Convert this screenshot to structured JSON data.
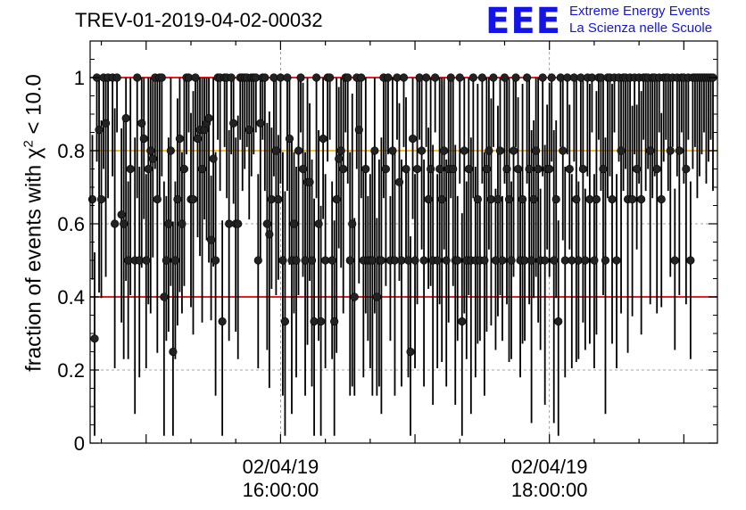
{
  "header": {
    "run_title": "TREV-01-2019-04-02-00032",
    "logo_text": "EEE",
    "logo_line1": "Extreme Energy Events",
    "logo_line2": "La Scienza nelle Scuole"
  },
  "colors": {
    "accent_blue": "#1414e6",
    "threshold_red": "#e00000",
    "threshold_orange": "#ffb000",
    "marker": "#222222"
  },
  "chart_data": {
    "type": "scatter",
    "title": "TREV-01-2019-04-02-00032",
    "xlabel": "",
    "ylabel_prefix": "fraction of events with ",
    "ylabel_symbol": "χ",
    "ylabel_exponent": "2",
    "ylabel_suffix": " < 10.0",
    "xlim": [
      "02/04/19 14:35:00",
      "02/04/19 19:15:00"
    ],
    "ylim": [
      0,
      1.1
    ],
    "grid": true,
    "x_ticks": [
      {
        "x": "02/04/19 16:00:00",
        "date": "02/04/19",
        "time": "16:00:00"
      },
      {
        "x": "02/04/19 18:00:00",
        "date": "02/04/19",
        "time": "18:00:00"
      }
    ],
    "y_ticks": [
      {
        "value": 0,
        "label": "0"
      },
      {
        "value": 0.2,
        "label": "0.2"
      },
      {
        "value": 0.4,
        "label": "0.4"
      },
      {
        "value": 0.6,
        "label": "0.6"
      },
      {
        "value": 0.8,
        "label": "0.8"
      },
      {
        "value": 1,
        "label": "1"
      }
    ],
    "hlines": [
      {
        "y": 1.0,
        "color": "#e00000"
      },
      {
        "y": 0.8,
        "color": "#ffb000"
      },
      {
        "y": 0.4,
        "color": "#e00000"
      }
    ],
    "series": [
      {
        "points": [
          [
            "14:36:00",
            0.667
          ],
          [
            "14:37:00",
            0.286
          ],
          [
            "14:38:00",
            1.0
          ],
          [
            "14:39:00",
            0.857
          ],
          [
            "14:40:00",
            0.667
          ],
          [
            "14:41:00",
            1.0
          ],
          [
            "14:42:00",
            0.875
          ],
          [
            "14:43:00",
            1.0
          ],
          [
            "14:45:00",
            1.0
          ],
          [
            "14:46:00",
            0.6
          ],
          [
            "14:47:00",
            1.0
          ],
          [
            "14:49:00",
            0.625
          ],
          [
            "14:50:00",
            0.6
          ],
          [
            "14:51:00",
            0.889
          ],
          [
            "14:52:00",
            0.5
          ],
          [
            "14:53:00",
            0.75
          ],
          [
            "14:55:00",
            0.5
          ],
          [
            "14:56:00",
            1.0
          ],
          [
            "14:57:00",
            0.5
          ],
          [
            "14:58:00",
            0.875
          ],
          [
            "14:59:00",
            0.833
          ],
          [
            "15:00:00",
            0.5
          ],
          [
            "15:01:00",
            0.75
          ],
          [
            "15:02:00",
            0.8
          ],
          [
            "15:03:00",
            0.778
          ],
          [
            "15:04:00",
            1.0
          ],
          [
            "15:05:00",
            0.667
          ],
          [
            "15:06:00",
            1.0
          ],
          [
            "15:07:00",
            1.0
          ],
          [
            "15:08:00",
            0.4
          ],
          [
            "15:09:00",
            0.5
          ],
          [
            "15:10:00",
            0.6
          ],
          [
            "15:11:00",
            0.8
          ],
          [
            "15:12:00",
            0.25
          ],
          [
            "15:13:00",
            0.5
          ],
          [
            "15:14:00",
            0.667
          ],
          [
            "15:15:00",
            0.833
          ],
          [
            "15:16:00",
            0.6
          ],
          [
            "15:17:00",
            0.75
          ],
          [
            "15:18:00",
            1.0
          ],
          [
            "15:19:00",
            1.0
          ],
          [
            "15:20:00",
            0.667
          ],
          [
            "15:21:00",
            0.667
          ],
          [
            "15:22:00",
            1.0
          ],
          [
            "15:23:00",
            0.833
          ],
          [
            "15:24:00",
            0.857
          ],
          [
            "15:25:00",
            0.75
          ],
          [
            "15:26:00",
            0.857
          ],
          [
            "15:27:00",
            0.875
          ],
          [
            "15:28:00",
            0.889
          ],
          [
            "15:29:00",
            0.556
          ],
          [
            "15:30:00",
            0.778
          ],
          [
            "15:31:00",
            0.5
          ],
          [
            "15:32:00",
            1.0
          ],
          [
            "15:33:00",
            1.0
          ],
          [
            "15:34:00",
            0.333
          ],
          [
            "15:35:00",
            1.0
          ],
          [
            "15:36:00",
            1.0
          ],
          [
            "15:37:00",
            0.6
          ],
          [
            "15:38:00",
            1.0
          ],
          [
            "15:39:00",
            0.875
          ],
          [
            "15:40:00",
            0.6
          ],
          [
            "15:41:00",
            0.6
          ],
          [
            "15:42:00",
            1.0
          ],
          [
            "15:43:00",
            1.0
          ],
          [
            "15:44:00",
            1.0
          ],
          [
            "15:45:00",
            1.0
          ],
          [
            "15:46:00",
            0.857
          ],
          [
            "15:47:00",
            1.0
          ],
          [
            "15:48:00",
            1.0
          ],
          [
            "15:49:00",
            1.0
          ],
          [
            "15:50:00",
            0.5
          ],
          [
            "15:51:00",
            0.875
          ],
          [
            "15:52:00",
            1.0
          ],
          [
            "15:53:00",
            1.0
          ],
          [
            "15:54:00",
            0.6
          ],
          [
            "15:55:00",
            0.571
          ],
          [
            "15:56:00",
            0.667
          ],
          [
            "15:57:00",
            1.0
          ],
          [
            "15:58:00",
            0.8
          ],
          [
            "15:59:00",
            0.667
          ],
          [
            "16:00:00",
            1.0
          ],
          [
            "16:01:00",
            0.5
          ],
          [
            "16:02:00",
            0.333
          ],
          [
            "16:03:00",
            1.0
          ],
          [
            "16:04:00",
            0.833
          ],
          [
            "16:05:00",
            0.5
          ],
          [
            "16:06:00",
            0.6
          ],
          [
            "16:07:00",
            0.5
          ],
          [
            "16:08:00",
            0.8
          ],
          [
            "16:09:00",
            1.0
          ],
          [
            "16:10:00",
            0.75
          ],
          [
            "16:11:00",
            0.5
          ],
          [
            "16:12:00",
            0.714
          ],
          [
            "16:13:00",
            0.714
          ],
          [
            "16:14:00",
            0.5
          ],
          [
            "16:15:00",
            0.333
          ],
          [
            "16:16:00",
            1.0
          ],
          [
            "16:17:00",
            0.6
          ],
          [
            "16:18:00",
            0.333
          ],
          [
            "16:19:00",
            0.833
          ],
          [
            "16:20:00",
            0.5
          ],
          [
            "16:21:00",
            1.0
          ],
          [
            "16:22:00",
            1.0
          ],
          [
            "16:23:00",
            0.5
          ],
          [
            "16:24:00",
            0.333
          ],
          [
            "16:25:00",
            0.667
          ],
          [
            "16:26:00",
            0.778
          ],
          [
            "16:27:00",
            0.8
          ],
          [
            "16:28:00",
            0.75
          ],
          [
            "16:29:00",
            1.0
          ],
          [
            "16:30:00",
            1.0
          ],
          [
            "16:31:00",
            0.5
          ],
          [
            "16:32:00",
            0.6
          ],
          [
            "16:33:00",
            0.4
          ],
          [
            "16:34:00",
            1.0
          ],
          [
            "16:35:00",
            0.857
          ],
          [
            "16:36:00",
            1.0
          ],
          [
            "16:37:00",
            0.5
          ],
          [
            "16:38:00",
            0.75
          ],
          [
            "16:39:00",
            0.5
          ],
          [
            "16:40:00",
            0.5
          ],
          [
            "16:41:00",
            0.5
          ],
          [
            "16:42:00",
            0.8
          ],
          [
            "16:43:00",
            0.4
          ],
          [
            "16:44:00",
            0.5
          ],
          [
            "16:45:00",
            0.5
          ],
          [
            "16:46:00",
            1.0
          ],
          [
            "16:47:00",
            0.75
          ],
          [
            "16:48:00",
            1.0
          ],
          [
            "16:49:00",
            0.5
          ],
          [
            "16:50:00",
            0.8
          ],
          [
            "16:51:00",
            0.5
          ],
          [
            "16:52:00",
            1.0
          ],
          [
            "16:53:00",
            0.714
          ],
          [
            "16:54:00",
            0.5
          ],
          [
            "16:55:00",
            1.0
          ],
          [
            "16:56:00",
            0.75
          ],
          [
            "16:57:00",
            0.5
          ],
          [
            "16:58:00",
            0.25
          ],
          [
            "16:59:00",
            0.833
          ],
          [
            "17:00:00",
            0.5
          ],
          [
            "17:01:00",
            0.75
          ],
          [
            "17:02:00",
            1.0
          ],
          [
            "17:03:00",
            0.8
          ],
          [
            "17:04:00",
            0.5
          ],
          [
            "17:05:00",
            1.0
          ],
          [
            "17:06:00",
            0.667
          ],
          [
            "17:07:00",
            0.75
          ],
          [
            "17:08:00",
            0.5
          ],
          [
            "17:09:00",
            1.0
          ],
          [
            "17:10:00",
            0.5
          ],
          [
            "17:11:00",
            0.75
          ],
          [
            "17:12:00",
            0.667
          ],
          [
            "17:13:00",
            0.8
          ],
          [
            "17:14:00",
            0.5
          ],
          [
            "17:15:00",
            0.75
          ],
          [
            "17:16:00",
            1.0
          ],
          [
            "17:17:00",
            0.75
          ],
          [
            "17:18:00",
            0.5
          ],
          [
            "17:19:00",
            0.5
          ],
          [
            "17:20:00",
            1.0
          ],
          [
            "17:21:00",
            0.333
          ],
          [
            "17:22:00",
            0.8
          ],
          [
            "17:23:00",
            0.5
          ],
          [
            "17:24:00",
            0.75
          ],
          [
            "17:25:00",
            0.5
          ],
          [
            "17:26:00",
            1.0
          ],
          [
            "17:27:00",
            0.5
          ],
          [
            "17:28:00",
            0.667
          ],
          [
            "17:29:00",
            0.5
          ],
          [
            "17:30:00",
            1.0
          ],
          [
            "17:31:00",
            0.5
          ],
          [
            "17:32:00",
            0.75
          ],
          [
            "17:33:00",
            0.8
          ],
          [
            "17:34:00",
            0.667
          ],
          [
            "17:35:00",
            1.0
          ],
          [
            "17:36:00",
            0.5
          ],
          [
            "17:37:00",
            0.667
          ],
          [
            "17:38:00",
            0.8
          ],
          [
            "17:39:00",
            0.5
          ],
          [
            "17:40:00",
            1.0
          ],
          [
            "17:41:00",
            0.75
          ],
          [
            "17:42:00",
            0.667
          ],
          [
            "17:43:00",
            0.5
          ],
          [
            "17:44:00",
            0.8
          ],
          [
            "17:45:00",
            1.0
          ],
          [
            "17:46:00",
            0.75
          ],
          [
            "17:47:00",
            0.5
          ],
          [
            "17:48:00",
            0.667
          ],
          [
            "17:49:00",
            0.5
          ],
          [
            "17:50:00",
            1.0
          ],
          [
            "17:51:00",
            0.75
          ],
          [
            "17:52:00",
            0.5
          ],
          [
            "17:53:00",
            0.667
          ],
          [
            "17:54:00",
            0.8
          ],
          [
            "17:55:00",
            0.75
          ],
          [
            "17:56:00",
            0.5
          ],
          [
            "17:57:00",
            1.0
          ],
          [
            "17:58:00",
            0.5
          ],
          [
            "17:59:00",
            0.75
          ],
          [
            "18:00:00",
            0.75
          ],
          [
            "18:01:00",
            1.0
          ],
          [
            "18:02:00",
            0.5
          ],
          [
            "18:03:00",
            0.667
          ],
          [
            "18:04:00",
            0.333
          ],
          [
            "18:05:00",
            1.0
          ],
          [
            "18:06:00",
            0.8
          ],
          [
            "18:07:00",
            0.5
          ],
          [
            "18:08:00",
            1.0
          ],
          [
            "18:09:00",
            0.75
          ],
          [
            "18:10:00",
            0.5
          ],
          [
            "18:11:00",
            1.0
          ],
          [
            "18:12:00",
            0.667
          ],
          [
            "18:13:00",
            0.5
          ],
          [
            "18:14:00",
            1.0
          ],
          [
            "18:15:00",
            0.75
          ],
          [
            "18:16:00",
            0.5
          ],
          [
            "18:17:00",
            1.0
          ],
          [
            "18:18:00",
            0.667
          ],
          [
            "18:19:00",
            1.0
          ],
          [
            "18:20:00",
            0.5
          ],
          [
            "18:21:00",
            0.667
          ],
          [
            "18:22:00",
            1.0
          ],
          [
            "18:23:00",
            1.0
          ],
          [
            "18:24:00",
            0.75
          ],
          [
            "18:25:00",
            0.5
          ],
          [
            "18:26:00",
            1.0
          ],
          [
            "18:27:00",
            1.0
          ],
          [
            "18:28:00",
            0.667
          ],
          [
            "18:29:00",
            1.0
          ],
          [
            "18:30:00",
            0.5
          ],
          [
            "18:31:00",
            1.0
          ],
          [
            "18:32:00",
            0.8
          ],
          [
            "18:33:00",
            1.0
          ],
          [
            "18:34:00",
            1.0
          ],
          [
            "18:35:00",
            0.667
          ],
          [
            "18:36:00",
            1.0
          ],
          [
            "18:37:00",
            0.667
          ],
          [
            "18:38:00",
            1.0
          ],
          [
            "18:39:00",
            0.75
          ],
          [
            "18:40:00",
            1.0
          ],
          [
            "18:41:00",
            0.667
          ],
          [
            "18:42:00",
            1.0
          ],
          [
            "18:43:00",
            1.0
          ],
          [
            "18:44:00",
            1.0
          ],
          [
            "18:45:00",
            0.8
          ],
          [
            "18:46:00",
            1.0
          ],
          [
            "18:47:00",
            1.0
          ],
          [
            "18:48:00",
            0.75
          ],
          [
            "18:49:00",
            1.0
          ],
          [
            "18:50:00",
            0.667
          ],
          [
            "18:51:00",
            1.0
          ],
          [
            "18:52:00",
            1.0
          ],
          [
            "18:53:00",
            1.0
          ],
          [
            "18:54:00",
            0.8
          ],
          [
            "18:55:00",
            1.0
          ],
          [
            "18:56:00",
            0.5
          ],
          [
            "18:57:00",
            1.0
          ],
          [
            "18:58:00",
            0.8
          ],
          [
            "18:59:00",
            1.0
          ],
          [
            "19:00:00",
            1.0
          ],
          [
            "19:01:00",
            0.75
          ],
          [
            "19:02:00",
            1.0
          ],
          [
            "19:03:00",
            0.5
          ],
          [
            "19:04:00",
            1.0
          ],
          [
            "19:05:00",
            1.0
          ],
          [
            "19:06:00",
            1.0
          ],
          [
            "19:07:00",
            1.0
          ],
          [
            "19:08:00",
            1.0
          ],
          [
            "19:09:00",
            1.0
          ],
          [
            "19:10:00",
            1.0
          ],
          [
            "19:11:00",
            1.0
          ],
          [
            "19:12:00",
            1.0
          ],
          [
            "19:13:00",
            1.0
          ]
        ]
      }
    ]
  }
}
